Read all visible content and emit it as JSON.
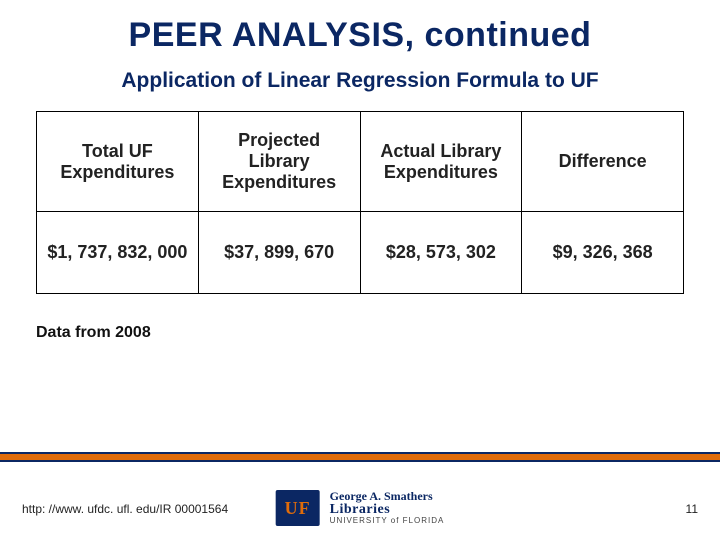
{
  "colors": {
    "navy": "#0b2763",
    "orange": "#e06c0a",
    "text": "#222222",
    "background": "#ffffff",
    "border": "#000000"
  },
  "title": "PEER ANALYSIS, continued",
  "subtitle": "Application of Linear Regression Formula to UF",
  "table": {
    "columns": [
      "Total UF Expenditures",
      "Projected Library Expenditures",
      "Actual Library Expenditures",
      "Difference"
    ],
    "rows": [
      {
        "total": "$1, 737, 832, 000",
        "projected": "$37, 899, 670",
        "actual": "$28, 573, 302",
        "difference": "$9, 326, 368"
      }
    ],
    "difference_color": "#e06c0a",
    "header_fontsize": 18,
    "cell_fontsize": 18,
    "border_width": 1.5
  },
  "note": "Data from 2008",
  "footer": {
    "url": "http: //www. ufdc. ufl. edu/IR 00001564",
    "page_number": "11",
    "logo": {
      "mark_text": "UF",
      "line1": "George A. Smathers",
      "line2": "Libraries",
      "line3": "UNIVERSITY of FLORIDA"
    }
  }
}
